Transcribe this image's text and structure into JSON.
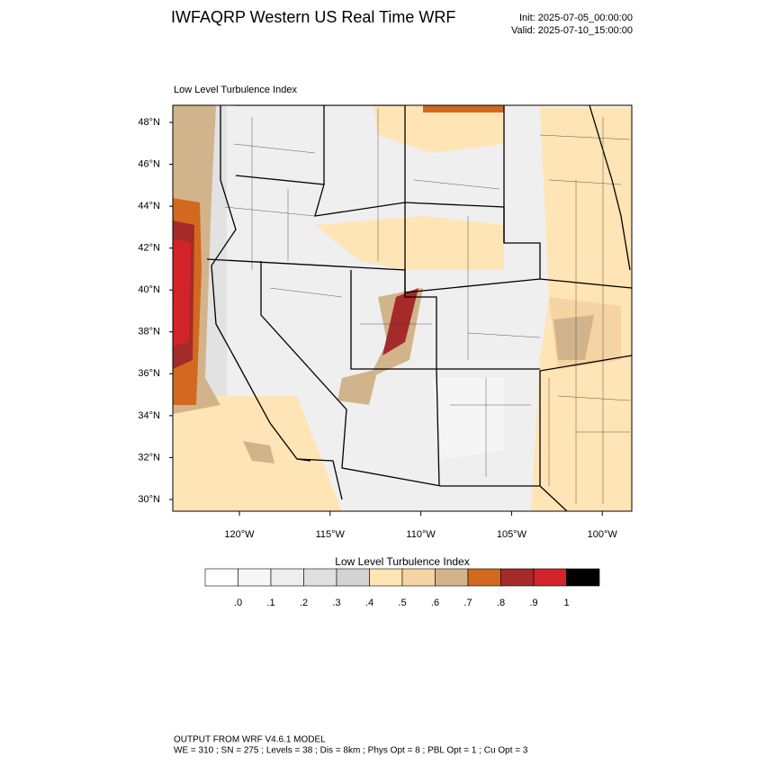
{
  "header": {
    "title": "IWFAQRP Western US Real Time WRF",
    "init": "Init: 2025-07-05_00:00:00",
    "valid": "Valid: 2025-07-10_15:00:00"
  },
  "map": {
    "label": "Low Level Turbulence Index",
    "lat_labels": [
      "48°N",
      "46°N",
      "44°N",
      "42°N",
      "40°N",
      "38°N",
      "36°N",
      "34°N",
      "32°N",
      "30°N"
    ],
    "lon_labels": [
      "120°W",
      "115°W",
      "110°W",
      "105°W",
      "100°W"
    ]
  },
  "colorbar": {
    "title": "Low Level Turbulence Index",
    "colors": [
      "#ffffff",
      "#f7f7f7",
      "#eeeeee",
      "#e0e0e0",
      "#d3d3d3",
      "#ffe4b5",
      "#f5d3a3",
      "#d2b48c",
      "#d2691e",
      "#a52a2a",
      "#d2232a",
      "#000000"
    ],
    "labels": [
      ".0",
      ".1",
      ".2",
      ".3",
      ".4",
      ".5",
      ".6",
      ".7",
      ".8",
      ".9",
      "1"
    ]
  },
  "footer": {
    "line1": "OUTPUT FROM WRF V4.6.1 MODEL",
    "line2": "WE = 310 ; SN = 275 ; Levels = 38 ; Dis = 8km ; Phys Opt = 8 ; PBL Opt = 1 ; Cu Opt = 3"
  }
}
